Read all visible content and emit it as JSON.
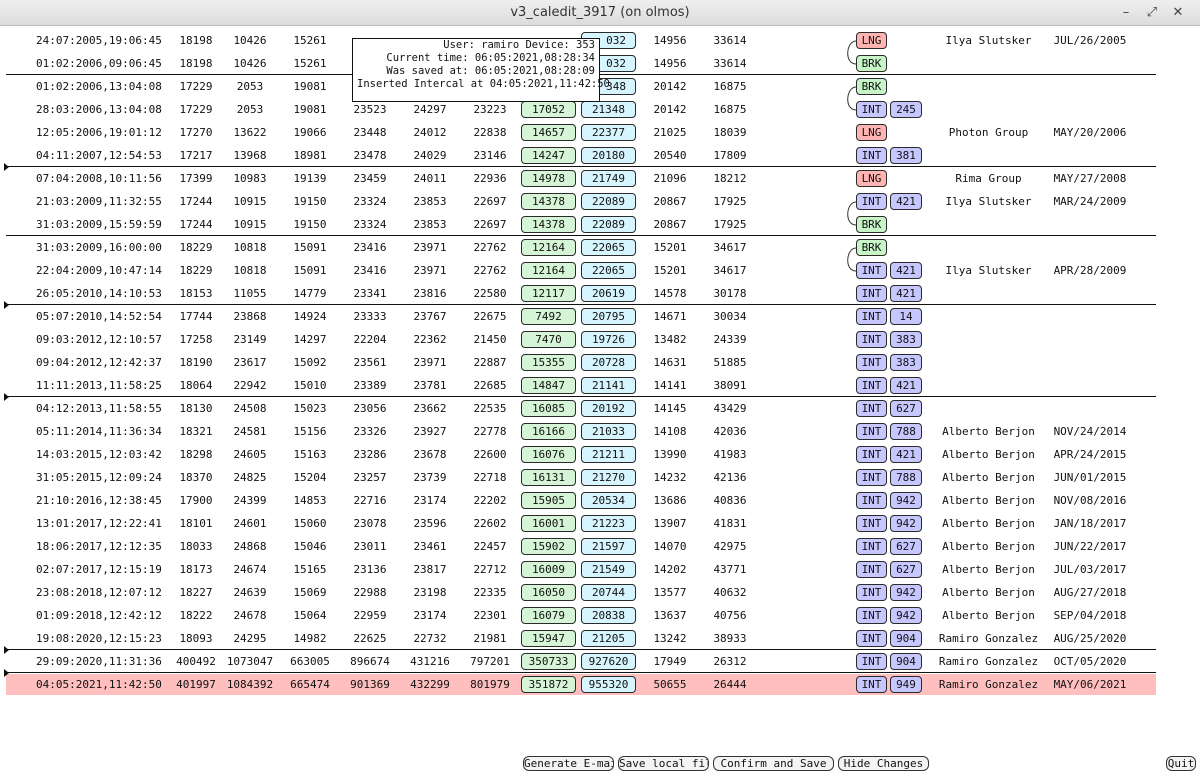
{
  "window": {
    "title": "v3_caledit_3917 (on olmos)"
  },
  "popup": {
    "lines": [
      "User: ramiro Device: 353",
      "Current time: 06:05:2021,08:28:34",
      "Was saved at: 06:05:2021,08:28:09",
      "Inserted Intercal at 04:05:2021,11:42:50"
    ]
  },
  "rows": [
    {
      "date": "24:07:2005,19:06:45",
      "n1": "18198",
      "n2": "10426",
      "n3": "15261",
      "n4": "",
      "n5": "",
      "n6": "",
      "g": "",
      "c": "",
      "n7": "14956",
      "n8": "33614",
      "tag": "LNG",
      "dev": "",
      "name": "Ilya Slutsker",
      "nd": "JUL/26/2005"
    },
    {
      "date": "01:02:2006,09:06:45",
      "n1": "18198",
      "n2": "10426",
      "n3": "15261",
      "n4": "",
      "n5": "",
      "n6": "",
      "g": "",
      "c": "",
      "n7": "14956",
      "n8": "33614",
      "tag": "BRK",
      "dev": "",
      "name": "",
      "nd": ""
    },
    {
      "date": "01:02:2006,13:04:08",
      "n1": "17229",
      "n2": "2053",
      "n3": "19081",
      "n4": "",
      "n5": "",
      "n6": "",
      "g": "",
      "c": "",
      "n7": "20142",
      "n8": "16875",
      "tag": "BRK",
      "dev": "",
      "name": "",
      "nd": ""
    },
    {
      "date": "28:03:2006,13:04:08",
      "n1": "17229",
      "n2": "2053",
      "n3": "19081",
      "n4": "23523",
      "n5": "24297",
      "n6": "23223",
      "g": "17052",
      "c": "21348",
      "n7": "20142",
      "n8": "16875",
      "tag": "INT",
      "dev": "245",
      "name": "",
      "nd": ""
    },
    {
      "date": "12:05:2006,19:01:12",
      "n1": "17270",
      "n2": "13622",
      "n3": "19066",
      "n4": "23448",
      "n5": "24012",
      "n6": "22838",
      "g": "14657",
      "c": "22377",
      "n7": "21025",
      "n8": "18039",
      "tag": "LNG",
      "dev": "",
      "name": "Photon Group",
      "nd": "MAY/20/2006"
    },
    {
      "date": "04:11:2007,12:54:53",
      "n1": "17217",
      "n2": "13968",
      "n3": "18981",
      "n4": "23478",
      "n5": "24029",
      "n6": "23146",
      "g": "14247",
      "c": "20180",
      "n7": "20540",
      "n8": "17809",
      "tag": "INT",
      "dev": "381",
      "name": "",
      "nd": ""
    },
    {
      "date": "07:04:2008,10:11:56",
      "n1": "17399",
      "n2": "10983",
      "n3": "19139",
      "n4": "23459",
      "n5": "24011",
      "n6": "22936",
      "g": "14978",
      "c": "21749",
      "n7": "21096",
      "n8": "18212",
      "tag": "LNG",
      "dev": "",
      "name": "Rima Group",
      "nd": "MAY/27/2008"
    },
    {
      "date": "21:03:2009,11:32:55",
      "n1": "17244",
      "n2": "10915",
      "n3": "19150",
      "n4": "23324",
      "n5": "23853",
      "n6": "22697",
      "g": "14378",
      "c": "22089",
      "n7": "20867",
      "n8": "17925",
      "tag": "INT",
      "dev": "421",
      "name": "Ilya Slutsker",
      "nd": "MAR/24/2009"
    },
    {
      "date": "31:03:2009,15:59:59",
      "n1": "17244",
      "n2": "10915",
      "n3": "19150",
      "n4": "23324",
      "n5": "23853",
      "n6": "22697",
      "g": "14378",
      "c": "22089",
      "n7": "20867",
      "n8": "17925",
      "tag": "BRK",
      "dev": "",
      "name": "",
      "nd": ""
    },
    {
      "date": "31:03:2009,16:00:00",
      "n1": "18229",
      "n2": "10818",
      "n3": "15091",
      "n4": "23416",
      "n5": "23971",
      "n6": "22762",
      "g": "12164",
      "c": "22065",
      "n7": "15201",
      "n8": "34617",
      "tag": "BRK",
      "dev": "",
      "name": "",
      "nd": ""
    },
    {
      "date": "22:04:2009,10:47:14",
      "n1": "18229",
      "n2": "10818",
      "n3": "15091",
      "n4": "23416",
      "n5": "23971",
      "n6": "22762",
      "g": "12164",
      "c": "22065",
      "n7": "15201",
      "n8": "34617",
      "tag": "INT",
      "dev": "421",
      "name": "Ilya Slutsker",
      "nd": "APR/28/2009"
    },
    {
      "date": "26:05:2010,14:10:53",
      "n1": "18153",
      "n2": "11055",
      "n3": "14779",
      "n4": "23341",
      "n5": "23816",
      "n6": "22580",
      "g": "12117",
      "c": "20619",
      "n7": "14578",
      "n8": "30178",
      "tag": "INT",
      "dev": "421",
      "name": "",
      "nd": ""
    },
    {
      "date": "05:07:2010,14:52:54",
      "n1": "17744",
      "n2": "23868",
      "n3": "14924",
      "n4": "23333",
      "n5": "23767",
      "n6": "22675",
      "g": "7492",
      "c": "20795",
      "n7": "14671",
      "n8": "30034",
      "tag": "INT",
      "dev": "14",
      "name": "",
      "nd": ""
    },
    {
      "date": "09:03:2012,12:10:57",
      "n1": "17258",
      "n2": "23149",
      "n3": "14297",
      "n4": "22204",
      "n5": "22362",
      "n6": "21450",
      "g": "7470",
      "c": "19726",
      "n7": "13482",
      "n8": "24339",
      "tag": "INT",
      "dev": "383",
      "name": "",
      "nd": ""
    },
    {
      "date": "09:04:2012,12:42:37",
      "n1": "18190",
      "n2": "23617",
      "n3": "15092",
      "n4": "23561",
      "n5": "23971",
      "n6": "22887",
      "g": "15355",
      "c": "20728",
      "n7": "14631",
      "n8": "51885",
      "tag": "INT",
      "dev": "383",
      "name": "",
      "nd": ""
    },
    {
      "date": "11:11:2013,11:58:25",
      "n1": "18064",
      "n2": "22942",
      "n3": "15010",
      "n4": "23389",
      "n5": "23781",
      "n6": "22685",
      "g": "14847",
      "c": "21141",
      "n7": "14141",
      "n8": "38091",
      "tag": "INT",
      "dev": "421",
      "name": "",
      "nd": ""
    },
    {
      "date": "04:12:2013,11:58:55",
      "n1": "18130",
      "n2": "24508",
      "n3": "15023",
      "n4": "23056",
      "n5": "23662",
      "n6": "22535",
      "g": "16085",
      "c": "20192",
      "n7": "14145",
      "n8": "43429",
      "tag": "INT",
      "dev": "627",
      "name": "",
      "nd": ""
    },
    {
      "date": "05:11:2014,11:36:34",
      "n1": "18321",
      "n2": "24581",
      "n3": "15156",
      "n4": "23326",
      "n5": "23927",
      "n6": "22778",
      "g": "16166",
      "c": "21033",
      "n7": "14108",
      "n8": "42036",
      "tag": "INT",
      "dev": "788",
      "name": "Alberto Berjon",
      "nd": "NOV/24/2014"
    },
    {
      "date": "14:03:2015,12:03:42",
      "n1": "18298",
      "n2": "24605",
      "n3": "15163",
      "n4": "23286",
      "n5": "23678",
      "n6": "22600",
      "g": "16076",
      "c": "21211",
      "n7": "13990",
      "n8": "41983",
      "tag": "INT",
      "dev": "421",
      "name": "Alberto Berjon",
      "nd": "APR/24/2015"
    },
    {
      "date": "31:05:2015,12:09:24",
      "n1": "18370",
      "n2": "24825",
      "n3": "15204",
      "n4": "23257",
      "n5": "23739",
      "n6": "22718",
      "g": "16131",
      "c": "21270",
      "n7": "14232",
      "n8": "42136",
      "tag": "INT",
      "dev": "788",
      "name": "Alberto Berjon",
      "nd": "JUN/01/2015"
    },
    {
      "date": "21:10:2016,12:38:45",
      "n1": "17900",
      "n2": "24399",
      "n3": "14853",
      "n4": "22716",
      "n5": "23174",
      "n6": "22202",
      "g": "15905",
      "c": "20534",
      "n7": "13686",
      "n8": "40836",
      "tag": "INT",
      "dev": "942",
      "name": "Alberto Berjon",
      "nd": "NOV/08/2016"
    },
    {
      "date": "13:01:2017,12:22:41",
      "n1": "18101",
      "n2": "24601",
      "n3": "15060",
      "n4": "23078",
      "n5": "23596",
      "n6": "22602",
      "g": "16001",
      "c": "21223",
      "n7": "13907",
      "n8": "41831",
      "tag": "INT",
      "dev": "942",
      "name": "Alberto Berjon",
      "nd": "JAN/18/2017"
    },
    {
      "date": "18:06:2017,12:12:35",
      "n1": "18033",
      "n2": "24868",
      "n3": "15046",
      "n4": "23011",
      "n5": "23461",
      "n6": "22457",
      "g": "15902",
      "c": "21597",
      "n7": "14070",
      "n8": "42975",
      "tag": "INT",
      "dev": "627",
      "name": "Alberto Berjon",
      "nd": "JUN/22/2017"
    },
    {
      "date": "02:07:2017,12:15:19",
      "n1": "18173",
      "n2": "24674",
      "n3": "15165",
      "n4": "23136",
      "n5": "23817",
      "n6": "22712",
      "g": "16009",
      "c": "21549",
      "n7": "14202",
      "n8": "43771",
      "tag": "INT",
      "dev": "627",
      "name": "Alberto Berjon",
      "nd": "JUL/03/2017"
    },
    {
      "date": "23:08:2018,12:07:12",
      "n1": "18227",
      "n2": "24639",
      "n3": "15069",
      "n4": "22988",
      "n5": "23198",
      "n6": "22335",
      "g": "16050",
      "c": "20744",
      "n7": "13577",
      "n8": "40632",
      "tag": "INT",
      "dev": "942",
      "name": "Alberto Berjon",
      "nd": "AUG/27/2018"
    },
    {
      "date": "01:09:2018,12:42:12",
      "n1": "18222",
      "n2": "24678",
      "n3": "15064",
      "n4": "22959",
      "n5": "23174",
      "n6": "22301",
      "g": "16079",
      "c": "20838",
      "n7": "13637",
      "n8": "40756",
      "tag": "INT",
      "dev": "942",
      "name": "Alberto Berjon",
      "nd": "SEP/04/2018"
    },
    {
      "date": "19:08:2020,12:15:23",
      "n1": "18093",
      "n2": "24295",
      "n3": "14982",
      "n4": "22625",
      "n5": "22732",
      "n6": "21981",
      "g": "15947",
      "c": "21205",
      "n7": "13242",
      "n8": "38933",
      "tag": "INT",
      "dev": "904",
      "name": "Ramiro Gonzalez",
      "nd": "AUG/25/2020"
    },
    {
      "date": "29:09:2020,11:31:36",
      "n1": "400492",
      "n2": "1073047",
      "n3": "663005",
      "n4": "896674",
      "n5": "431216",
      "n6": "797201",
      "g": "350733",
      "c": "927620",
      "n7": "17949",
      "n8": "26312",
      "tag": "INT",
      "dev": "904",
      "name": "Ramiro Gonzalez",
      "nd": "OCT/05/2020"
    },
    {
      "date": "04:05:2021,11:42:50",
      "n1": "401997",
      "n2": "1084392",
      "n3": "665474",
      "n4": "901369",
      "n5": "432299",
      "n6": "801979",
      "g": "351872",
      "c": "955320",
      "n7": "50655",
      "n8": "26444",
      "tag": "INT",
      "dev": "949",
      "name": "Ramiro Gonzalez",
      "nd": "MAY/06/2021",
      "highlight": true
    }
  ],
  "partial_boxes": {
    "row0_cyan": "032",
    "row1_cyan": "032",
    "row2_cyan": "348"
  },
  "buttons": {
    "generate_email": "Generate E-mail",
    "save_local": "Save local file",
    "confirm_save": "Confirm and Save",
    "hide_changes": "Hide Changes",
    "quit": "Quit"
  },
  "colors": {
    "highlight_row": "#ffbfbf",
    "green_box": "#d6f5d6",
    "cyan_box": "#d6f5ff",
    "int_tag": "#c7c7ff",
    "lng_tag": "#ffb3b3",
    "brk_tag": "#c8f5c8"
  }
}
